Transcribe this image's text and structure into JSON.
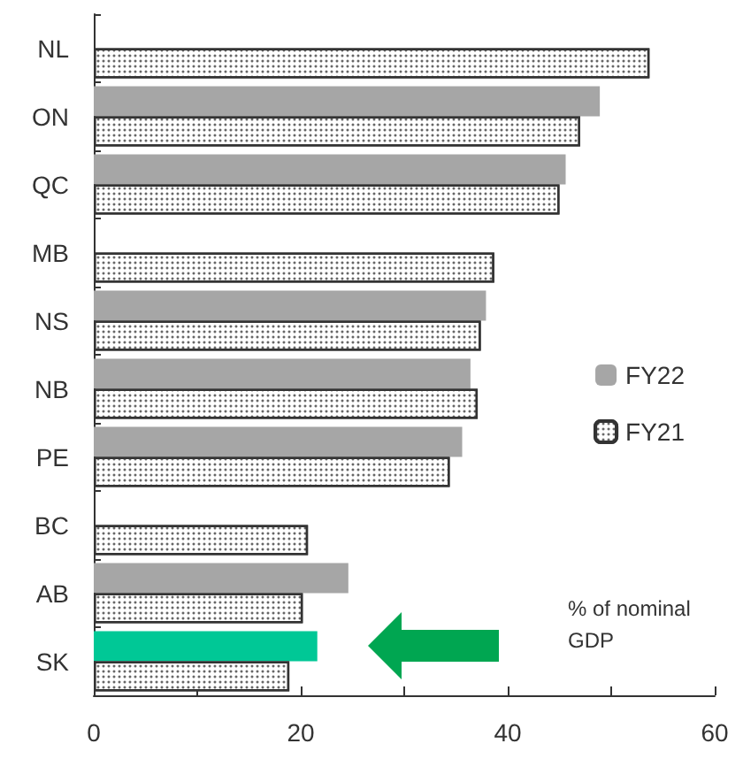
{
  "chart_data": {
    "type": "bar",
    "orientation": "horizontal",
    "categories": [
      "NL",
      "ON",
      "QC",
      "MB",
      "NS",
      "NB",
      "PE",
      "BC",
      "AB",
      "SK"
    ],
    "series": [
      {
        "name": "FY22",
        "color": "#a6a6a6",
        "colors": [
          "#a6a6a6",
          "#a6a6a6",
          "#a6a6a6",
          "#a6a6a6",
          "#a6a6a6",
          "#a6a6a6",
          "#a6a6a6",
          "#a6a6a6",
          "#a6a6a6",
          "#00c896"
        ],
        "values": [
          null,
          48.9,
          45.6,
          null,
          37.9,
          36.4,
          35.6,
          null,
          24.6,
          21.6
        ]
      },
      {
        "name": "FY21",
        "color": "#ffffff",
        "values": [
          53.7,
          47.0,
          45.0,
          38.7,
          37.4,
          37.1,
          34.4,
          20.7,
          20.2,
          18.9
        ]
      }
    ],
    "xlim": [
      0,
      60
    ],
    "xticks": [
      0,
      {
        "value": 10,
        "label": null
      },
      20,
      {
        "value": 30,
        "label": null
      },
      40,
      {
        "value": 50,
        "label": null
      },
      60
    ],
    "grid": false,
    "legend": "right",
    "annotations": [
      "% of nominal GDP"
    ]
  }
}
